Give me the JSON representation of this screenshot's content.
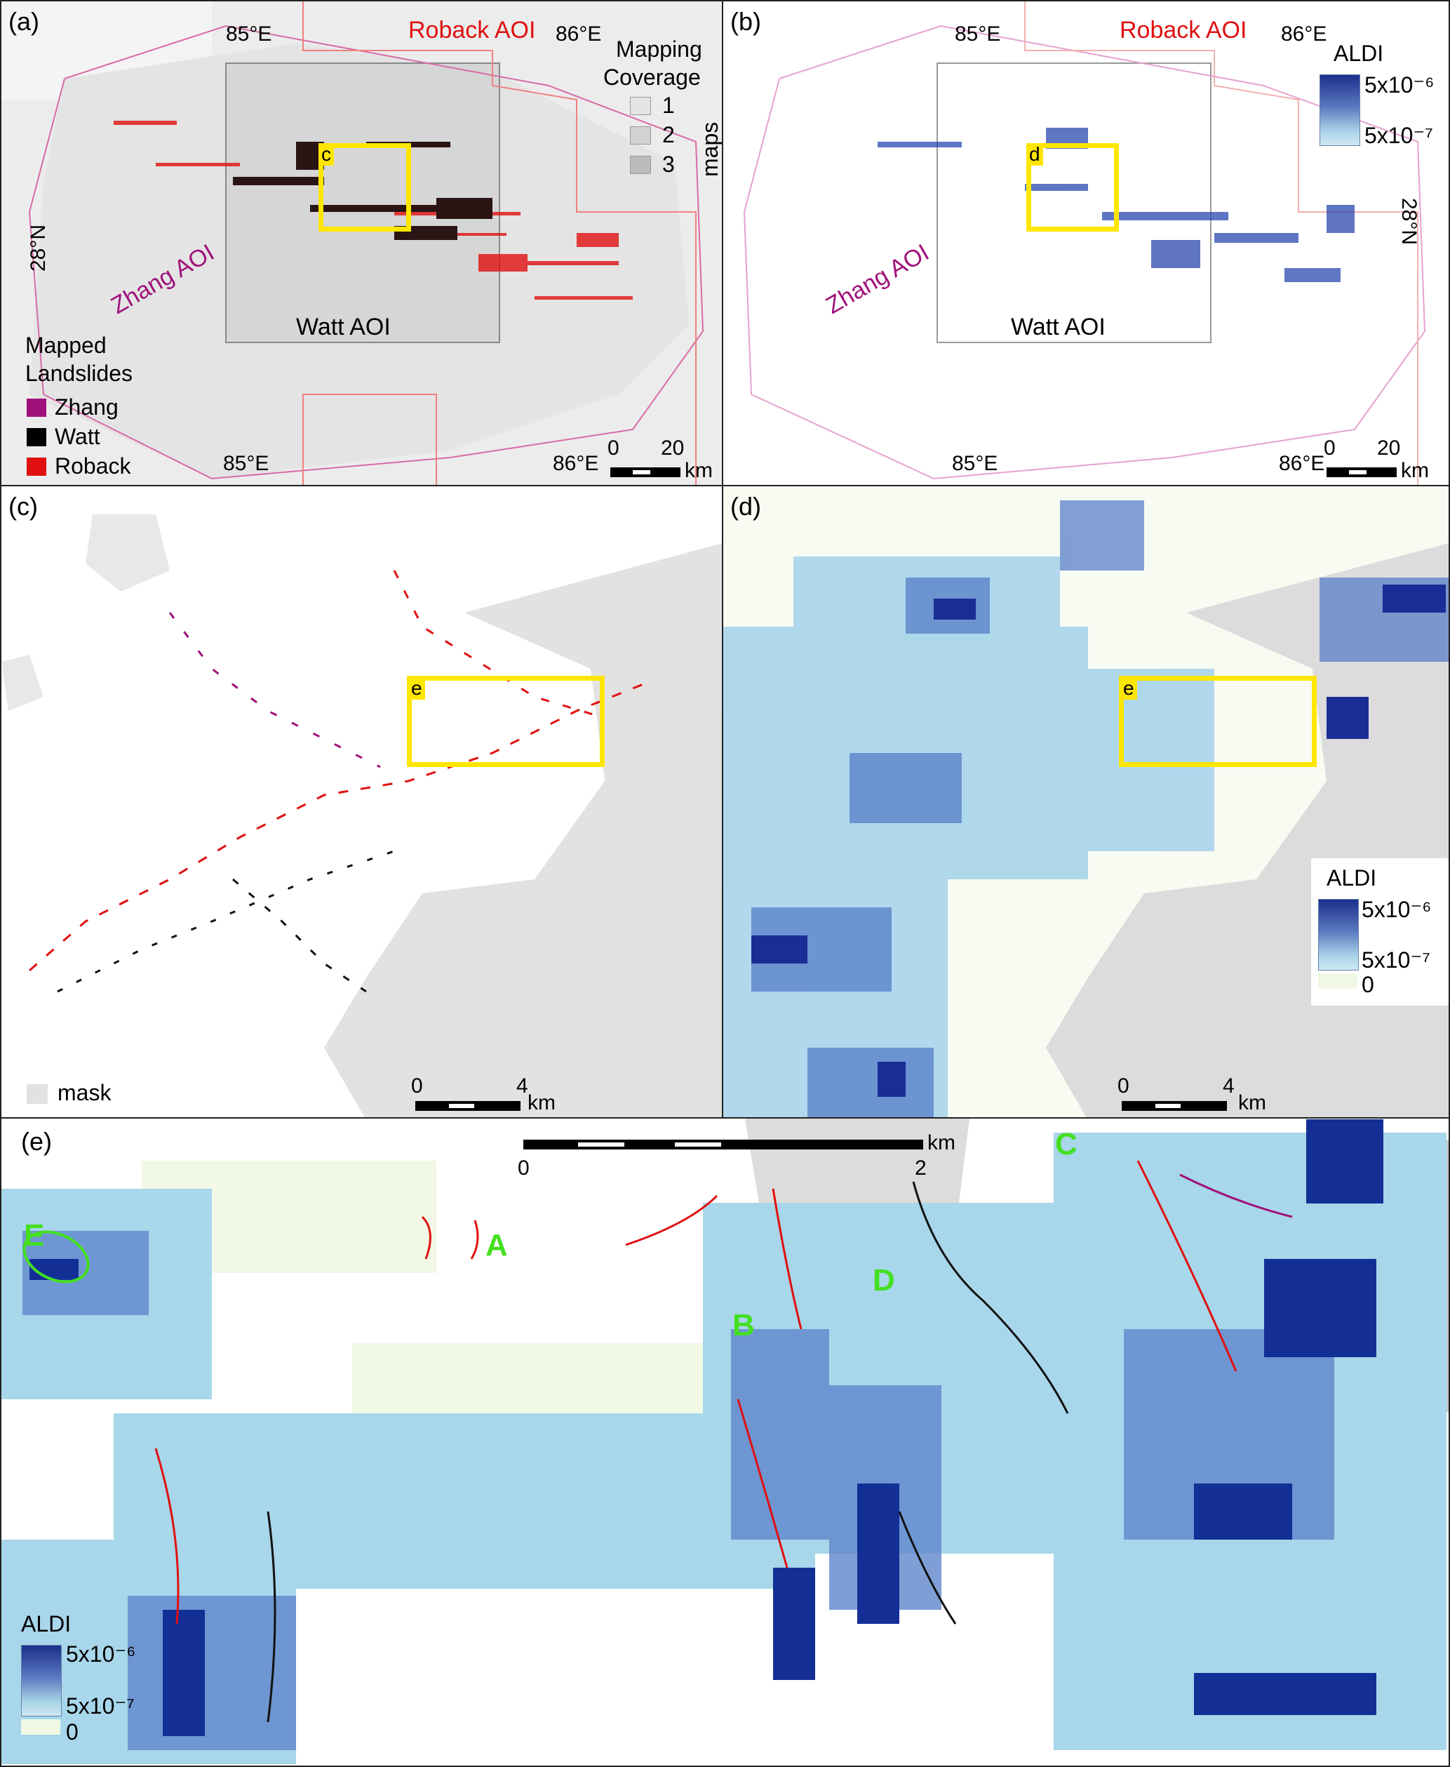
{
  "panel_a": {
    "label": "(a)",
    "aoi_roback": "Roback AOI",
    "aoi_zhang": "Zhang AOI",
    "aoi_watt": "Watt AOI",
    "lon_left_top": "85°E",
    "lon_right_top": "86°E",
    "lon_left_bottom": "85°E",
    "lon_right_bottom": "86°E",
    "lat_left": "28°N",
    "lat_right": "28°N",
    "box_label": "c",
    "coverage_title_1": "Mapping",
    "coverage_title_2": "Coverage",
    "coverage_items": [
      "1",
      "2",
      "3"
    ],
    "coverage_unit": "maps",
    "legend_title_1": "Mapped",
    "legend_title_2": "Landslides",
    "legend_items": [
      "Zhang",
      "Watt",
      "Roback"
    ],
    "colors": {
      "zhang": "#a0107a",
      "watt": "#000000",
      "roback": "#e01010"
    },
    "scale_0": "0",
    "scale_max": "20",
    "scale_unit": "km"
  },
  "panel_b": {
    "label": "(b)",
    "aoi_roback": "Roback AOI",
    "aoi_zhang": "Zhang AOI",
    "aoi_watt": "Watt AOI",
    "lon_left_top": "85°E",
    "lon_right_top": "86°E",
    "lon_left_bottom": "85°E",
    "lon_right_bottom": "86°E",
    "lat_left": "28°N",
    "lat_right": "28°N",
    "box_label": "d",
    "legend_title": "ALDI",
    "legend_high": "5x10⁻⁶",
    "legend_low": "5x10⁻⁷",
    "scale_0": "0",
    "scale_max": "20",
    "scale_unit": "km"
  },
  "panel_c": {
    "label": "(c)",
    "box_label": "e",
    "mask_label": "mask",
    "scale_0": "0",
    "scale_max": "4",
    "scale_unit": "km"
  },
  "panel_d": {
    "label": "(d)",
    "box_label": "e",
    "legend_title": "ALDI",
    "legend_high": "5x10⁻⁶",
    "legend_low": "5x10⁻⁷",
    "legend_zero": "0",
    "scale_0": "0",
    "scale_max": "4",
    "scale_unit": "km"
  },
  "panel_e": {
    "label": "(e)",
    "scale_0": "0",
    "scale_max": "2",
    "scale_unit": "km",
    "site_labels": [
      "A",
      "B",
      "C",
      "D",
      "E"
    ],
    "legend_title": "ALDI",
    "legend_high": "5x10⁻⁶",
    "legend_low": "5x10⁻⁷",
    "legend_zero": "0"
  }
}
